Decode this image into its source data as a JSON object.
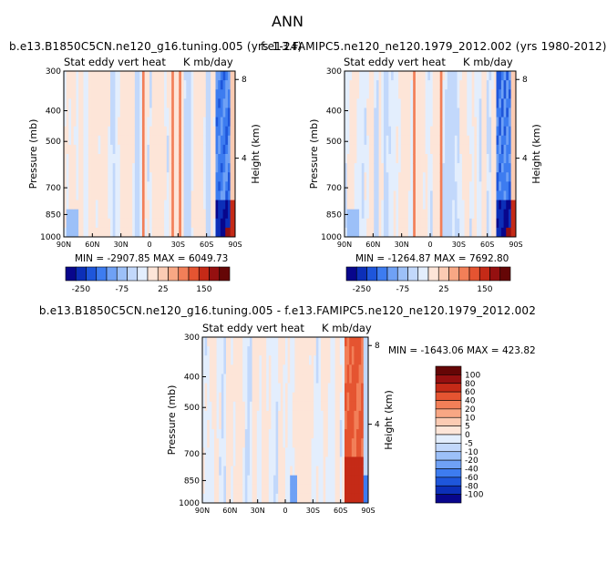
{
  "page_title": "ANN",
  "panels": [
    {
      "title": "b.e13.B1850C5CN.ne120_g16.tuning.005 (yrs 1-24)",
      "left_label": "Stat eddy vert heat",
      "right_label": "K mb/day",
      "stats": "MIN = -2907.85   MAX = 6049.73"
    },
    {
      "title": "f.e13.FAMIPC5.ne120_ne120.1979_2012.002 (yrs 1980-2012)",
      "left_label": "Stat eddy vert heat",
      "right_label": "K mb/day",
      "stats": "MIN = -1264.87   MAX = 7692.80"
    },
    {
      "title": "b.e13.B1850C5CN.ne120_g16.tuning.005 - f.e13.FAMIPC5.ne120_ne120.1979_2012.002",
      "left_label": "Stat eddy vert heat",
      "right_label": "K mb/day",
      "stats": "MIN = -1643.06   MAX = 423.82"
    }
  ],
  "axes": {
    "ylabel": "Pressure (mb)",
    "y2label": "Height (km)",
    "pressure_ticks": [
      "300",
      "400",
      "500",
      "700",
      "850",
      "1000"
    ],
    "height_ticks": [
      "8",
      "4"
    ],
    "lat_ticks": [
      "90N",
      "60N",
      "30N",
      "0",
      "30S",
      "60S",
      "90S"
    ]
  },
  "horizontal_colorbar": {
    "colors": [
      "#08068c",
      "#0c2fb8",
      "#1e56db",
      "#3d7cf0",
      "#6fa1f5",
      "#9cc0f8",
      "#c2d8fb",
      "#e3eefd",
      "#fde5d8",
      "#fbcbb3",
      "#f8a784",
      "#f27f58",
      "#e55431",
      "#c52a17",
      "#951010",
      "#650606"
    ],
    "labels": [
      "-250",
      "-75",
      "25",
      "150"
    ]
  },
  "vertical_colorbar": {
    "colors": [
      "#650606",
      "#951010",
      "#c52a17",
      "#e55431",
      "#f27f58",
      "#f8a784",
      "#fbcbb3",
      "#fde5d8",
      "#e3eefd",
      "#c2d8fb",
      "#9cc0f8",
      "#6fa1f5",
      "#3d7cf0",
      "#1e56db",
      "#0c2fb8",
      "#08068c"
    ],
    "labels": [
      "100",
      "80",
      "60",
      "40",
      "20",
      "10",
      "5",
      "0",
      "-5",
      "-10",
      "-20",
      "-40",
      "-60",
      "-80",
      "-100"
    ]
  },
  "chart_data": [
    {
      "type": "heatmap",
      "title": "b.e13.B1850C5CN.ne120_g16.tuning.005 (yrs 1-24)",
      "variable": "Stat eddy vert heat",
      "units": "K mb/day",
      "xlabel": "",
      "ylabel": "Pressure (mb)",
      "y2label": "Height (km)",
      "x_ticks": [
        "90N",
        "60N",
        "30N",
        "0",
        "30S",
        "60S",
        "90S"
      ],
      "xlim": [
        90,
        -90
      ],
      "ylim": [
        1000,
        300
      ],
      "y_scale": "log",
      "min": -2907.85,
      "max": 6049.73
    },
    {
      "type": "heatmap",
      "title": "f.e13.FAMIPC5.ne120_ne120.1979_2012.002 (yrs 1980-2012)",
      "variable": "Stat eddy vert heat",
      "units": "K mb/day",
      "xlabel": "",
      "ylabel": "Pressure (mb)",
      "y2label": "Height (km)",
      "x_ticks": [
        "90N",
        "60N",
        "30N",
        "0",
        "30S",
        "60S",
        "90S"
      ],
      "xlim": [
        90,
        -90
      ],
      "ylim": [
        1000,
        300
      ],
      "y_scale": "log",
      "min": -1264.87,
      "max": 7692.8
    },
    {
      "type": "heatmap",
      "title": "b.e13.B1850C5CN.ne120_g16.tuning.005 - f.e13.FAMIPC5.ne120_ne120.1979_2012.002",
      "variable": "Stat eddy vert heat",
      "units": "K mb/day",
      "xlabel": "",
      "ylabel": "Pressure (mb)",
      "y2label": "Height (km)",
      "x_ticks": [
        "90N",
        "60N",
        "30N",
        "0",
        "30S",
        "60S",
        "90S"
      ],
      "xlim": [
        90,
        -90
      ],
      "ylim": [
        1000,
        300
      ],
      "y_scale": "log",
      "min": -1643.06,
      "max": 423.82
    }
  ]
}
